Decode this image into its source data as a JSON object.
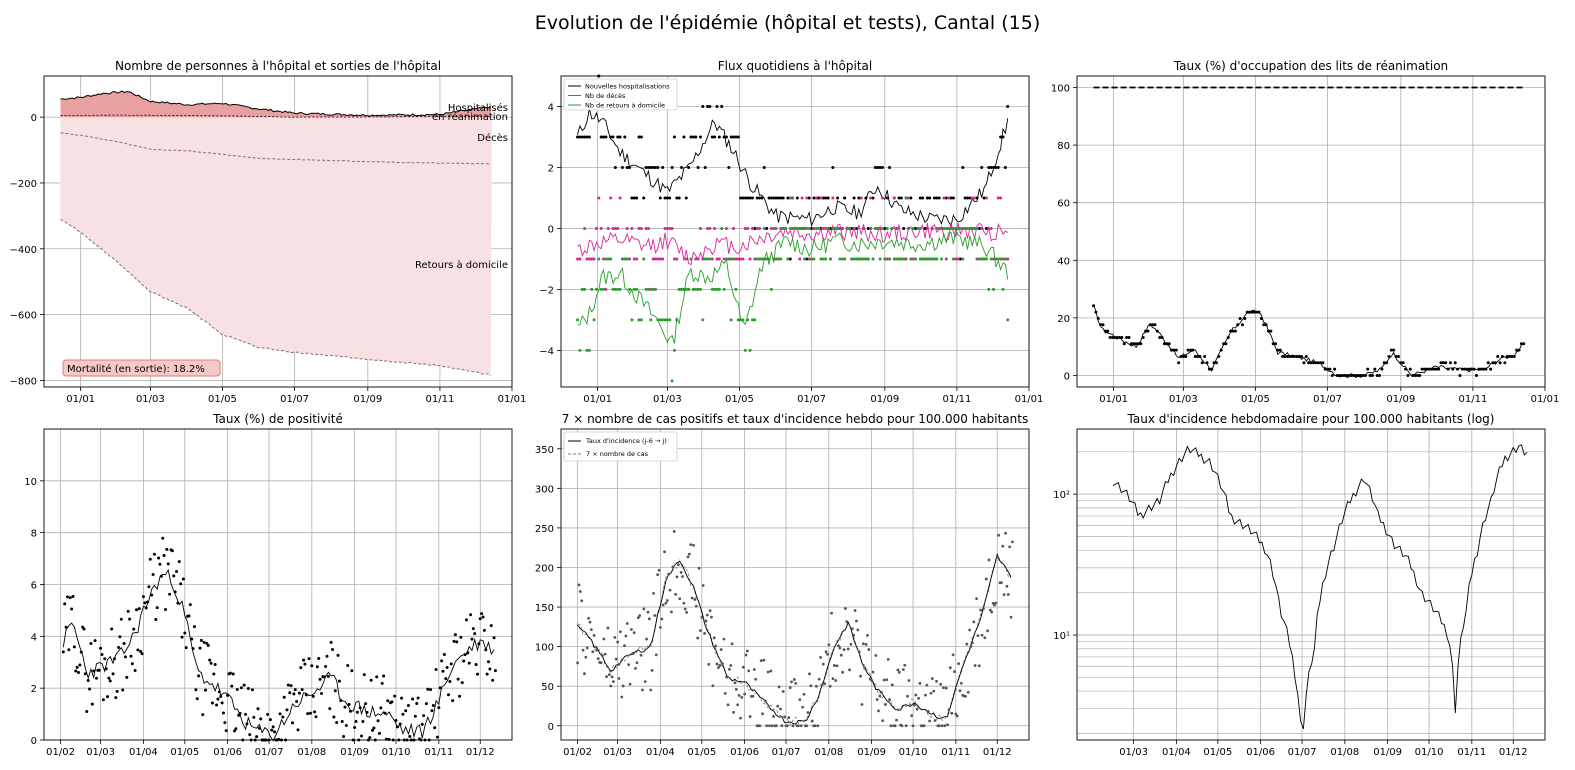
{
  "figure": {
    "title": "Evolution de l'épidémie (hôpital et tests), Cantal (15)"
  },
  "chart_data": [
    {
      "id": "p1",
      "type": "area",
      "title": "Nombre de personnes à l'hôpital et sorties de l'hôpital",
      "ylim": [
        -820,
        125
      ],
      "y_ticks": [
        0,
        -200,
        -400,
        -600,
        -800
      ],
      "y_tick_labels": [
        "0",
        "−200",
        "−400",
        "−600",
        "−800"
      ],
      "x_range": [
        "2020-12-01",
        "2022-01-01"
      ],
      "x_ticks": [
        "2021-01-01",
        "2021-03-01",
        "2021-05-01",
        "2021-07-01",
        "2021-09-01",
        "2021-11-01",
        "2022-01-01"
      ],
      "x_tick_labels": [
        "01/01",
        "01/03",
        "01/05",
        "01/07",
        "01/09",
        "01/11",
        "01/01"
      ],
      "grid": true,
      "series": [
        {
          "name": "Hospitalisés",
          "x": [
            "2020-12-15",
            "2021-01-01",
            "2021-01-20",
            "2021-02-10",
            "2021-03-01",
            "2021-04-01",
            "2021-05-01",
            "2021-06-01",
            "2021-07-01",
            "2021-09-01",
            "2021-11-01",
            "2021-12-15"
          ],
          "values": [
            55,
            60,
            72,
            78,
            48,
            38,
            42,
            25,
            12,
            6,
            8,
            32
          ]
        },
        {
          "name": "en réanimation",
          "x": [
            "2020-12-15",
            "2021-02-01",
            "2021-05-01",
            "2021-07-01",
            "2021-12-15"
          ],
          "values": [
            5,
            6,
            4,
            0,
            2
          ]
        },
        {
          "name": "Décès",
          "x": [
            "2020-12-15",
            "2021-01-01",
            "2021-02-01",
            "2021-03-01",
            "2021-04-01",
            "2021-06-01",
            "2021-08-01",
            "2021-10-01",
            "2021-12-15"
          ],
          "values": [
            -48,
            -55,
            -75,
            -98,
            -102,
            -125,
            -132,
            -138,
            -142
          ]
        },
        {
          "name": "Retours à domicile",
          "x": [
            "2020-12-15",
            "2021-01-01",
            "2021-02-01",
            "2021-03-01",
            "2021-04-01",
            "2021-05-01",
            "2021-06-01",
            "2021-07-01",
            "2021-08-01",
            "2021-09-01",
            "2021-10-01",
            "2021-11-01",
            "2021-12-15"
          ],
          "values": [
            -310,
            -350,
            -440,
            -530,
            -580,
            -660,
            -700,
            -715,
            -725,
            -735,
            -745,
            -755,
            -785
          ]
        }
      ],
      "labels": [
        "Hospitalisés",
        "en réanimation",
        "Décès",
        "Retours à domicile"
      ],
      "annotation": "Mortalité (en sortie): 18.2%",
      "colors": {
        "hosp_fill": "#e8a0a0",
        "returns_fill": "#f8e1e2",
        "line": "#000000",
        "dashed": "#8a6d6d"
      }
    },
    {
      "id": "p2",
      "type": "line",
      "title": "Flux quotidiens à l'hôpital",
      "ylim": [
        -5.2,
        5.0
      ],
      "y_ticks": [
        4,
        2,
        0,
        -2,
        -4
      ],
      "y_tick_labels": [
        "4",
        "2",
        "0",
        "−2",
        "−4"
      ],
      "x_range": [
        "2020-12-01",
        "2022-01-01"
      ],
      "x_ticks": [
        "2021-01-01",
        "2021-03-01",
        "2021-05-01",
        "2021-07-01",
        "2021-09-01",
        "2021-11-01",
        "2022-01-01"
      ],
      "x_tick_labels": [
        "01/01",
        "01/03",
        "01/05",
        "01/07",
        "01/09",
        "01/11",
        "01/01"
      ],
      "grid": true,
      "legend": "top-left",
      "series": [
        {
          "name": "Nouvelles hospitalisations",
          "color": "#000000",
          "x": [
            "2020-12-15",
            "2020-12-25",
            "2021-01-05",
            "2021-01-20",
            "2021-02-10",
            "2021-03-01",
            "2021-03-20",
            "2021-04-10",
            "2021-04-25",
            "2021-05-10",
            "2021-06-01",
            "2021-07-01",
            "2021-07-20",
            "2021-08-10",
            "2021-08-25",
            "2021-09-15",
            "2021-10-10",
            "2021-11-01",
            "2021-11-25",
            "2021-12-15"
          ],
          "values": [
            3.0,
            3.8,
            3.5,
            2.5,
            1.8,
            1.2,
            2.0,
            3.5,
            2.6,
            1.5,
            0.4,
            0.3,
            0.7,
            0.5,
            1.4,
            0.6,
            0.3,
            0.3,
            1.3,
            3.6
          ]
        },
        {
          "name": "Nb de décès",
          "color": "#d6279a",
          "x": [
            "2020-12-15",
            "2021-01-01",
            "2021-01-20",
            "2021-02-10",
            "2021-03-01",
            "2021-03-20",
            "2021-04-10",
            "2021-05-01",
            "2021-05-20",
            "2021-06-10",
            "2021-07-01",
            "2021-08-01",
            "2021-09-01",
            "2021-10-01",
            "2021-11-01",
            "2021-12-15"
          ],
          "values": [
            -0.7,
            -0.5,
            -0.4,
            -0.6,
            -0.4,
            -1.0,
            -0.5,
            -0.6,
            -0.3,
            -0.1,
            -0.2,
            -0.1,
            -0.2,
            -0.1,
            -0.1,
            -0.1
          ]
        },
        {
          "name": "Nb de retours à domicile",
          "color": "#2a9d2a",
          "x": [
            "2020-12-15",
            "2020-12-25",
            "2021-01-05",
            "2021-01-20",
            "2021-02-05",
            "2021-02-20",
            "2021-03-05",
            "2021-03-20",
            "2021-04-05",
            "2021-04-20",
            "2021-05-05",
            "2021-05-20",
            "2021-06-10",
            "2021-07-01",
            "2021-07-20",
            "2021-08-10",
            "2021-09-01",
            "2021-10-01",
            "2021-11-01",
            "2021-11-25",
            "2021-12-15"
          ],
          "values": [
            -3.3,
            -2.8,
            -1.6,
            -1.5,
            -2.3,
            -3.0,
            -3.8,
            -1.4,
            -1.6,
            -1.2,
            -3.4,
            -1.2,
            -0.4,
            -0.7,
            -0.4,
            -0.5,
            -0.4,
            -0.5,
            -0.3,
            -0.6,
            -1.5
          ]
        }
      ],
      "daily_points": "scatter of daily integer values per series"
    },
    {
      "id": "p3",
      "type": "line",
      "title": "Taux (%) d'occupation des lits de réanimation",
      "ylim": [
        -4,
        104
      ],
      "y_ticks": [
        100,
        80,
        60,
        40,
        20,
        0
      ],
      "y_tick_labels": [
        "100",
        "80",
        "60",
        "40",
        "20",
        "0"
      ],
      "x_range": [
        "2020-12-01",
        "2022-01-01"
      ],
      "x_ticks": [
        "2021-01-01",
        "2021-03-01",
        "2021-05-01",
        "2021-07-01",
        "2021-09-01",
        "2021-11-01",
        "2022-01-01"
      ],
      "x_tick_labels": [
        "01/01",
        "01/03",
        "01/05",
        "01/07",
        "01/09",
        "01/11",
        "01/01"
      ],
      "grid": true,
      "capacity_line": {
        "value": 100,
        "x_range": [
          "2020-12-15",
          "2021-12-15"
        ],
        "style": "dashed"
      },
      "series": [
        {
          "x": [
            "2020-12-15",
            "2020-12-22",
            "2021-01-05",
            "2021-01-20",
            "2021-02-01",
            "2021-02-10",
            "2021-02-25",
            "2021-03-10",
            "2021-03-25",
            "2021-04-10",
            "2021-04-25",
            "2021-05-05",
            "2021-05-20",
            "2021-06-10",
            "2021-06-25",
            "2021-07-10",
            "2021-08-01",
            "2021-08-15",
            "2021-08-25",
            "2021-09-10",
            "2021-10-01",
            "2021-10-20",
            "2021-11-10",
            "2021-11-25",
            "2021-12-05",
            "2021-12-15"
          ],
          "values": [
            24,
            16,
            13,
            10,
            18,
            14,
            6,
            9,
            2,
            15,
            22,
            22,
            8,
            6,
            4,
            0,
            0,
            2,
            8,
            0,
            3,
            2,
            2,
            6,
            7,
            11
          ]
        }
      ]
    },
    {
      "id": "p4",
      "type": "scatter",
      "title": "Taux (%) de positivité",
      "ylim": [
        0,
        12
      ],
      "y_ticks": [
        0,
        2,
        4,
        6,
        8,
        10
      ],
      "y_tick_labels": [
        "0",
        "2",
        "4",
        "6",
        "8",
        "10"
      ],
      "x_range": [
        "2020-01-20",
        "2020-12-24"
      ],
      "x_ticks": [
        "2020-02-01",
        "2020-03-01",
        "2020-04-01",
        "2020-05-01",
        "2020-06-01",
        "2020-07-01",
        "2020-08-01",
        "2020-09-01",
        "2020-10-01",
        "2020-11-01",
        "2020-12-01"
      ],
      "x_tick_labels": [
        "01/02",
        "01/03",
        "01/04",
        "01/05",
        "01/06",
        "01/07",
        "01/08",
        "01/09",
        "01/10",
        "01/11",
        "01/12"
      ],
      "grid": true,
      "series": [
        {
          "x": [
            "2020-02-03",
            "2020-02-10",
            "2020-02-20",
            "2020-03-01",
            "2020-03-15",
            "2020-03-25",
            "2020-04-05",
            "2020-04-15",
            "2020-04-22",
            "2020-05-01",
            "2020-05-10",
            "2020-05-20",
            "2020-06-01",
            "2020-06-15",
            "2020-06-25",
            "2020-07-05",
            "2020-07-20",
            "2020-08-01",
            "2020-08-15",
            "2020-08-25",
            "2020-09-10",
            "2020-09-25",
            "2020-10-05",
            "2020-10-20",
            "2020-11-01",
            "2020-11-10",
            "2020-11-20",
            "2020-12-01",
            "2020-12-10"
          ],
          "values": [
            3.8,
            4.5,
            2.6,
            2.8,
            3.2,
            4.0,
            5.5,
            6.4,
            6.2,
            4.8,
            2.6,
            2.2,
            1.6,
            0.6,
            0.3,
            0.2,
            1.4,
            1.8,
            2.4,
            1.5,
            1.1,
            1.0,
            0.4,
            0.3,
            1.5,
            2.8,
            3.4,
            3.8,
            3.5
          ]
        }
      ]
    },
    {
      "id": "p5",
      "type": "line",
      "title": "7 × nombre de cas positifs et taux d'incidence hebdo pour 100.000 habitants",
      "ylim": [
        -18,
        375
      ],
      "y_ticks": [
        0,
        50,
        100,
        150,
        200,
        250,
        300,
        350
      ],
      "y_tick_labels": [
        "0",
        "50",
        "100",
        "150",
        "200",
        "250",
        "300",
        "350"
      ],
      "x_range": [
        "2020-01-20",
        "2020-12-24"
      ],
      "x_ticks": [
        "2020-02-01",
        "2020-03-01",
        "2020-04-01",
        "2020-05-01",
        "2020-06-01",
        "2020-07-01",
        "2020-08-01",
        "2020-09-01",
        "2020-10-01",
        "2020-11-01",
        "2020-12-01"
      ],
      "x_tick_labels": [
        "01/02",
        "01/03",
        "01/04",
        "01/05",
        "01/06",
        "01/07",
        "01/08",
        "01/09",
        "01/10",
        "01/11",
        "01/12"
      ],
      "grid": true,
      "legend": "top-left",
      "series": [
        {
          "name": "Taux d'incidence (j-6 → j)",
          "x": [
            "2020-02-01",
            "2020-02-10",
            "2020-02-25",
            "2020-03-10",
            "2020-03-25",
            "2020-04-05",
            "2020-04-15",
            "2020-04-25",
            "2020-05-05",
            "2020-05-20",
            "2020-06-01",
            "2020-06-15",
            "2020-07-01",
            "2020-07-15",
            "2020-07-25",
            "2020-08-05",
            "2020-08-15",
            "2020-08-25",
            "2020-09-05",
            "2020-09-20",
            "2020-10-01",
            "2020-10-15",
            "2020-10-25",
            "2020-11-05",
            "2020-11-20",
            "2020-12-01",
            "2020-12-10"
          ],
          "values": [
            125,
            110,
            70,
            90,
            100,
            185,
            210,
            175,
            120,
            60,
            55,
            30,
            5,
            5,
            40,
            100,
            130,
            80,
            45,
            20,
            30,
            15,
            8,
            70,
            140,
            215,
            190
          ]
        },
        {
          "name": "7 × nombre de cas",
          "style": "dashed"
        }
      ]
    },
    {
      "id": "p6",
      "type": "line",
      "title": "Taux d'incidence hebdomadaire pour 100.000 habitants (log)",
      "y_scale": "log",
      "ylim": [
        1.8,
        290
      ],
      "y_ticks": [
        10,
        100
      ],
      "y_tick_labels": [
        "10¹",
        "10²"
      ],
      "x_range": [
        "2020-01-20",
        "2020-12-24"
      ],
      "x_ticks": [
        "2020-03-01",
        "2020-04-01",
        "2020-05-01",
        "2020-06-01",
        "2020-07-01",
        "2020-08-01",
        "2020-09-01",
        "2020-10-01",
        "2020-11-01",
        "2020-12-01"
      ],
      "x_tick_labels": [
        "01/03",
        "01/04",
        "01/05",
        "01/06",
        "01/07",
        "01/08",
        "01/09",
        "01/10",
        "01/11",
        "01/12"
      ],
      "grid": true,
      "series": [
        {
          "x": [
            "2020-02-15",
            "2020-02-25",
            "2020-03-05",
            "2020-03-20",
            "2020-04-01",
            "2020-04-10",
            "2020-04-25",
            "2020-05-10",
            "2020-05-25",
            "2020-06-05",
            "2020-06-15",
            "2020-06-25",
            "2020-07-01",
            "2020-07-10",
            "2020-07-25",
            "2020-08-05",
            "2020-08-15",
            "2020-08-25",
            "2020-09-05",
            "2020-09-15",
            "2020-09-25",
            "2020-10-05",
            "2020-10-15",
            "2020-10-20",
            "2020-10-28",
            "2020-11-05",
            "2020-11-15",
            "2020-11-25",
            "2020-12-05",
            "2020-12-10"
          ],
          "values": [
            125,
            100,
            70,
            90,
            160,
            210,
            170,
            70,
            55,
            40,
            15,
            6,
            1.6,
            8,
            45,
            90,
            130,
            70,
            45,
            35,
            20,
            15,
            10,
            3,
            15,
            40,
            90,
            180,
            220,
            195
          ]
        }
      ]
    }
  ]
}
